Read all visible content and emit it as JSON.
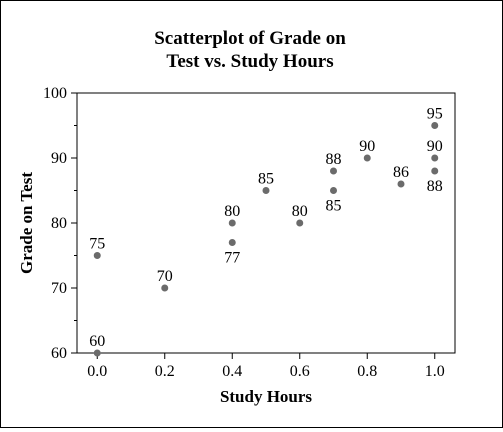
{
  "chart_data": {
    "type": "scatter",
    "title": [
      "Scatterplot of Grade on",
      "Test vs. Study Hours"
    ],
    "xlabel": "Study Hours",
    "ylabel": "Grade on Test",
    "xlim": [
      -0.06,
      1.06
    ],
    "ylim": [
      60,
      100
    ],
    "x_ticks": [
      0.0,
      0.2,
      0.4,
      0.6,
      0.8,
      1.0
    ],
    "x_tick_labels": [
      "0.0",
      "0.2",
      "0.4",
      "0.6",
      "0.8",
      "1.0"
    ],
    "y_ticks": [
      60,
      70,
      80,
      90,
      100
    ],
    "y_tick_labels": [
      "60",
      "70",
      "80",
      "90",
      "100"
    ],
    "y_minor_ticks": [
      65,
      75,
      85,
      95
    ],
    "grid": false,
    "marker_color": "#6b6b6b",
    "points": [
      {
        "x": 0.0,
        "y": 75,
        "label": "75",
        "label_pos": "above"
      },
      {
        "x": 0.0,
        "y": 60,
        "label": "60",
        "label_pos": "above"
      },
      {
        "x": 0.2,
        "y": 70,
        "label": "70",
        "label_pos": "above"
      },
      {
        "x": 0.4,
        "y": 80,
        "label": "80",
        "label_pos": "above"
      },
      {
        "x": 0.4,
        "y": 77,
        "label": "77",
        "label_pos": "below"
      },
      {
        "x": 0.5,
        "y": 85,
        "label": "85",
        "label_pos": "above"
      },
      {
        "x": 0.6,
        "y": 80,
        "label": "80",
        "label_pos": "above"
      },
      {
        "x": 0.7,
        "y": 88,
        "label": "88",
        "label_pos": "above"
      },
      {
        "x": 0.7,
        "y": 85,
        "label": "85",
        "label_pos": "below"
      },
      {
        "x": 0.8,
        "y": 90,
        "label": "90",
        "label_pos": "above"
      },
      {
        "x": 0.9,
        "y": 86,
        "label": "86",
        "label_pos": "above"
      },
      {
        "x": 1.0,
        "y": 95,
        "label": "95",
        "label_pos": "above"
      },
      {
        "x": 1.0,
        "y": 90,
        "label": "90",
        "label_pos": "above"
      },
      {
        "x": 1.0,
        "y": 88,
        "label": "88",
        "label_pos": "below"
      }
    ]
  }
}
